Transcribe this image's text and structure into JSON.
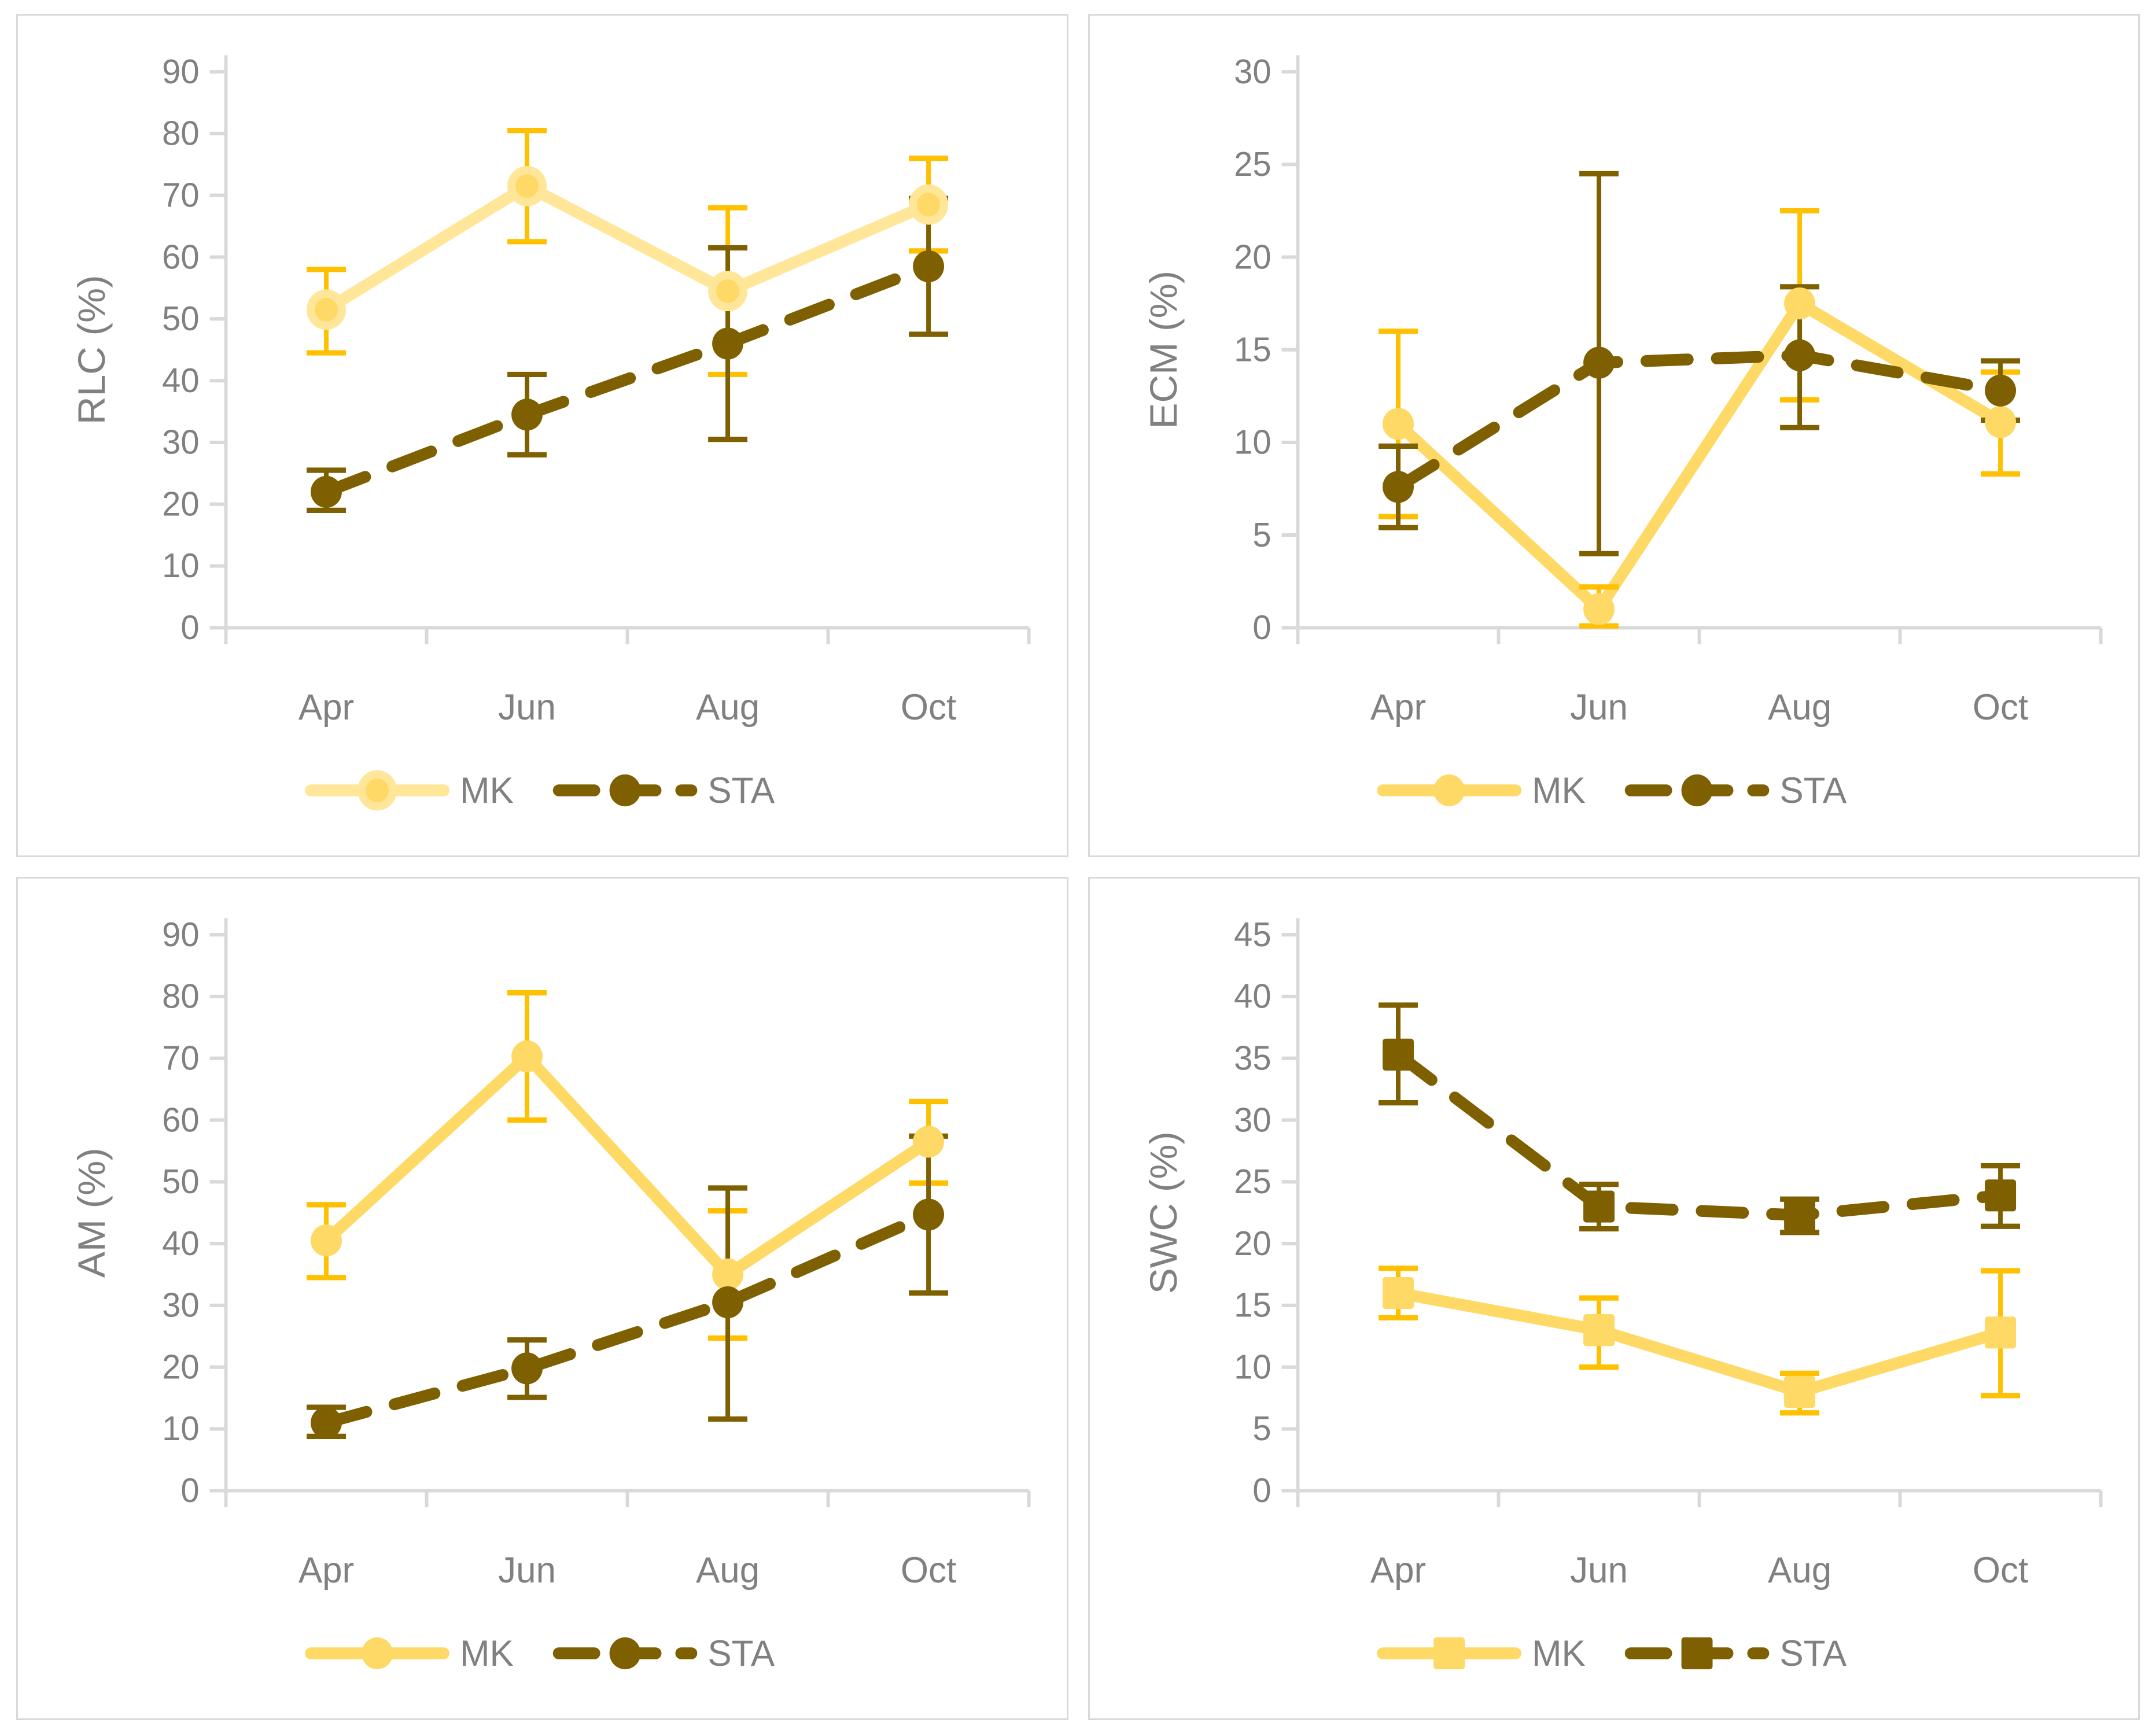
{
  "palette": {
    "background": "#FFFFFF",
    "panel_border": "#D9D9D9",
    "axis_line": "#D9D9D9",
    "text": "#808080",
    "mk_pale": "#FFE699",
    "mk_yellow": "#FFD966",
    "mk_error": "#FFC000",
    "sta_brown": "#7F6000"
  },
  "legend": {
    "mk_label": "MK",
    "sta_label": "STA"
  },
  "chart_data": [
    {
      "type": "line",
      "position": "top-left",
      "ylabel": "RLC (%)",
      "categories": [
        "Apr",
        "Jun",
        "Aug",
        "Oct"
      ],
      "ylim": [
        0,
        90
      ],
      "ytick_step": 10,
      "grid": false,
      "legend_position": "bottom",
      "series": [
        {
          "name": "MK",
          "line_style": "solid",
          "marker": "circle",
          "line_color": "#FFE699",
          "marker_fill": "#FFD966",
          "marker_ring": "#FFE699",
          "error_color": "#FFC000",
          "values": [
            51.5,
            71.5,
            54.5,
            68.5
          ],
          "err_low": [
            7,
            9,
            13.5,
            7.5
          ],
          "err_high": [
            6.5,
            9,
            13.5,
            7.5
          ]
        },
        {
          "name": "STA",
          "line_style": "dashed",
          "marker": "circle",
          "line_color": "#7F6000",
          "marker_fill": "#7F6000",
          "marker_ring": null,
          "error_color": "#7F6000",
          "values": [
            22,
            34.5,
            46,
            58.5
          ],
          "err_low": [
            3,
            6.5,
            15.5,
            11
          ],
          "err_high": [
            3.5,
            6.5,
            15.5,
            11
          ]
        }
      ]
    },
    {
      "type": "line",
      "position": "top-right",
      "ylabel": "ECM (%)",
      "categories": [
        "Apr",
        "Jun",
        "Aug",
        "Oct"
      ],
      "ylim": [
        0,
        30
      ],
      "ytick_step": 5,
      "grid": false,
      "legend_position": "bottom",
      "series": [
        {
          "name": "MK",
          "line_style": "solid",
          "marker": "circle",
          "line_color": "#FFD966",
          "marker_fill": "#FFD966",
          "marker_ring": null,
          "error_color": "#FFC000",
          "values": [
            11,
            1,
            17.5,
            11.1
          ],
          "err_low": [
            5,
            0.9,
            5.2,
            2.8
          ],
          "err_high": [
            5,
            1.2,
            5,
            2.7
          ]
        },
        {
          "name": "STA",
          "line_style": "dashed",
          "marker": "circle",
          "line_color": "#7F6000",
          "marker_fill": "#7F6000",
          "marker_ring": null,
          "error_color": "#7F6000",
          "values": [
            7.6,
            14.3,
            14.7,
            12.8
          ],
          "err_low": [
            2.2,
            10.3,
            3.9,
            1.6
          ],
          "err_high": [
            2.2,
            10.2,
            3.7,
            1.6
          ]
        }
      ]
    },
    {
      "type": "line",
      "position": "bottom-left",
      "ylabel": "AM (%)",
      "categories": [
        "Apr",
        "Jun",
        "Aug",
        "Oct"
      ],
      "ylim": [
        0,
        90
      ],
      "ytick_step": 10,
      "grid": false,
      "legend_position": "bottom",
      "series": [
        {
          "name": "MK",
          "line_style": "solid",
          "marker": "circle",
          "line_color": "#FFD966",
          "marker_fill": "#FFD966",
          "marker_ring": null,
          "error_color": "#FFC000",
          "values": [
            40.5,
            70.3,
            35,
            56.5
          ],
          "err_low": [
            6,
            10.3,
            10.3,
            6.7
          ],
          "err_high": [
            5.8,
            10.3,
            10.3,
            6.5
          ]
        },
        {
          "name": "STA",
          "line_style": "dashed",
          "marker": "circle",
          "line_color": "#7F6000",
          "marker_fill": "#7F6000",
          "marker_ring": null,
          "error_color": "#7F6000",
          "values": [
            11,
            19.8,
            30.5,
            44.7
          ],
          "err_low": [
            2.2,
            4.7,
            18.9,
            12.7
          ],
          "err_high": [
            2.5,
            4.6,
            18.5,
            12.7
          ]
        }
      ]
    },
    {
      "type": "line",
      "position": "bottom-right",
      "ylabel": "SWC (%)",
      "categories": [
        "Apr",
        "Jun",
        "Aug",
        "Oct"
      ],
      "ylim": [
        0,
        45
      ],
      "ytick_step": 5,
      "grid": false,
      "legend_position": "bottom",
      "series": [
        {
          "name": "MK",
          "line_style": "solid",
          "marker": "square",
          "line_color": "#FFD966",
          "marker_fill": "#FFD966",
          "marker_ring": null,
          "error_color": "#FFC000",
          "values": [
            16,
            13,
            8,
            12.8
          ],
          "err_low": [
            2,
            3,
            1.7,
            5.1
          ],
          "err_high": [
            2,
            2.6,
            1.5,
            5
          ]
        },
        {
          "name": "STA",
          "line_style": "dashed",
          "marker": "square",
          "line_color": "#7F6000",
          "marker_fill": "#7F6000",
          "marker_ring": null,
          "error_color": "#7F6000",
          "values": [
            35.3,
            23,
            22.3,
            23.9
          ],
          "err_low": [
            3.9,
            1.8,
            1.4,
            2.5
          ],
          "err_high": [
            4,
            1.8,
            1.3,
            2.4
          ]
        }
      ]
    }
  ]
}
